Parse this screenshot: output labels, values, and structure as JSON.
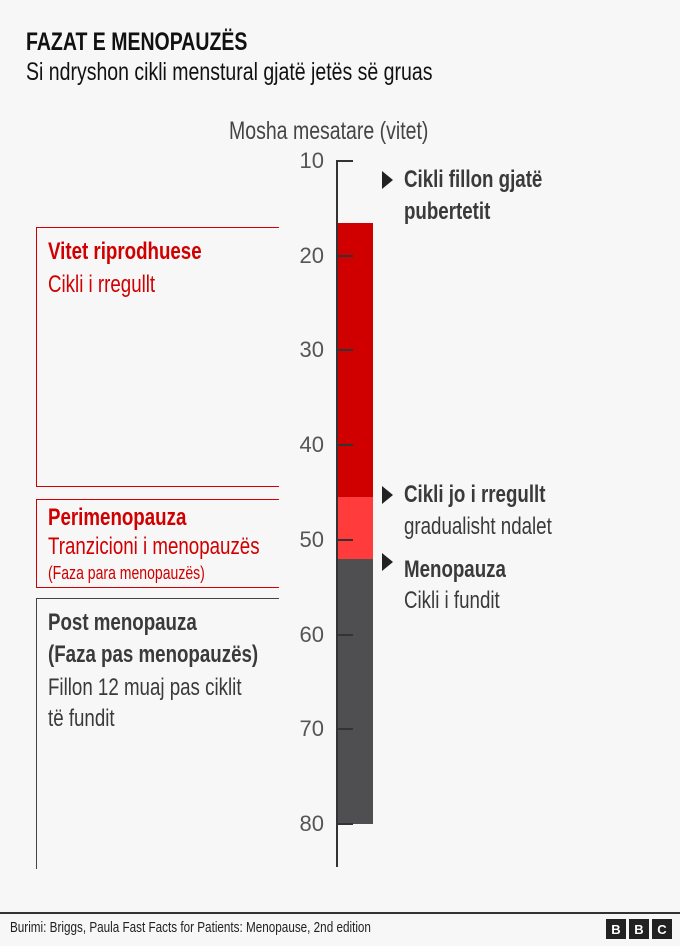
{
  "title": "FAZAT E MENOPAUZËS",
  "subtitle": "Si ndryshon cikli menstural gjatë jetës së gruas",
  "chart_data": {
    "type": "bar",
    "ylabel": "Mosha mesatare (vitet)",
    "ticks": [
      10,
      20,
      30,
      40,
      50,
      60,
      70,
      80
    ],
    "ylim": [
      10,
      80
    ],
    "segments": [
      {
        "name": "Vitet riprodhuese",
        "from": 16.5,
        "to": 45.5,
        "color": "#d10000"
      },
      {
        "name": "Perimenopauza",
        "from": 45.5,
        "to": 52,
        "color": "#ff3b3b"
      },
      {
        "name": "Post menopauza",
        "from": 52,
        "to": 80,
        "color": "#4f4f51"
      }
    ]
  },
  "boxes": {
    "reproductive": {
      "heading": "Vitet riprodhuese",
      "line1": "Cikli i rregullt",
      "color": "#d10000"
    },
    "peri": {
      "heading": "Perimenopauza",
      "line1": "Tranzicioni i menopauzës",
      "line2": "(Faza para menopauzës)",
      "color": "#d10000"
    },
    "post": {
      "heading": "Post menopauza",
      "heading2": "(Faza pas menopauzës)",
      "line1": "Fillon 12 muaj pas ciklit",
      "line2": "të fundit",
      "color": "#3a3a3a"
    }
  },
  "annotations": [
    {
      "line1": "Cikli fillon gjatë",
      "line2": "pubertetit"
    },
    {
      "line1": "Cikli jo i rregullt",
      "line2": "gradualisht ndalet"
    },
    {
      "line1": "Menopauza",
      "line2": "Cikli i fundit"
    }
  ],
  "footer": {
    "source": "Burimi: Briggs, Paula Fast Facts for Patients: Menopause, 2nd edition",
    "logo": [
      "B",
      "B",
      "C"
    ]
  }
}
